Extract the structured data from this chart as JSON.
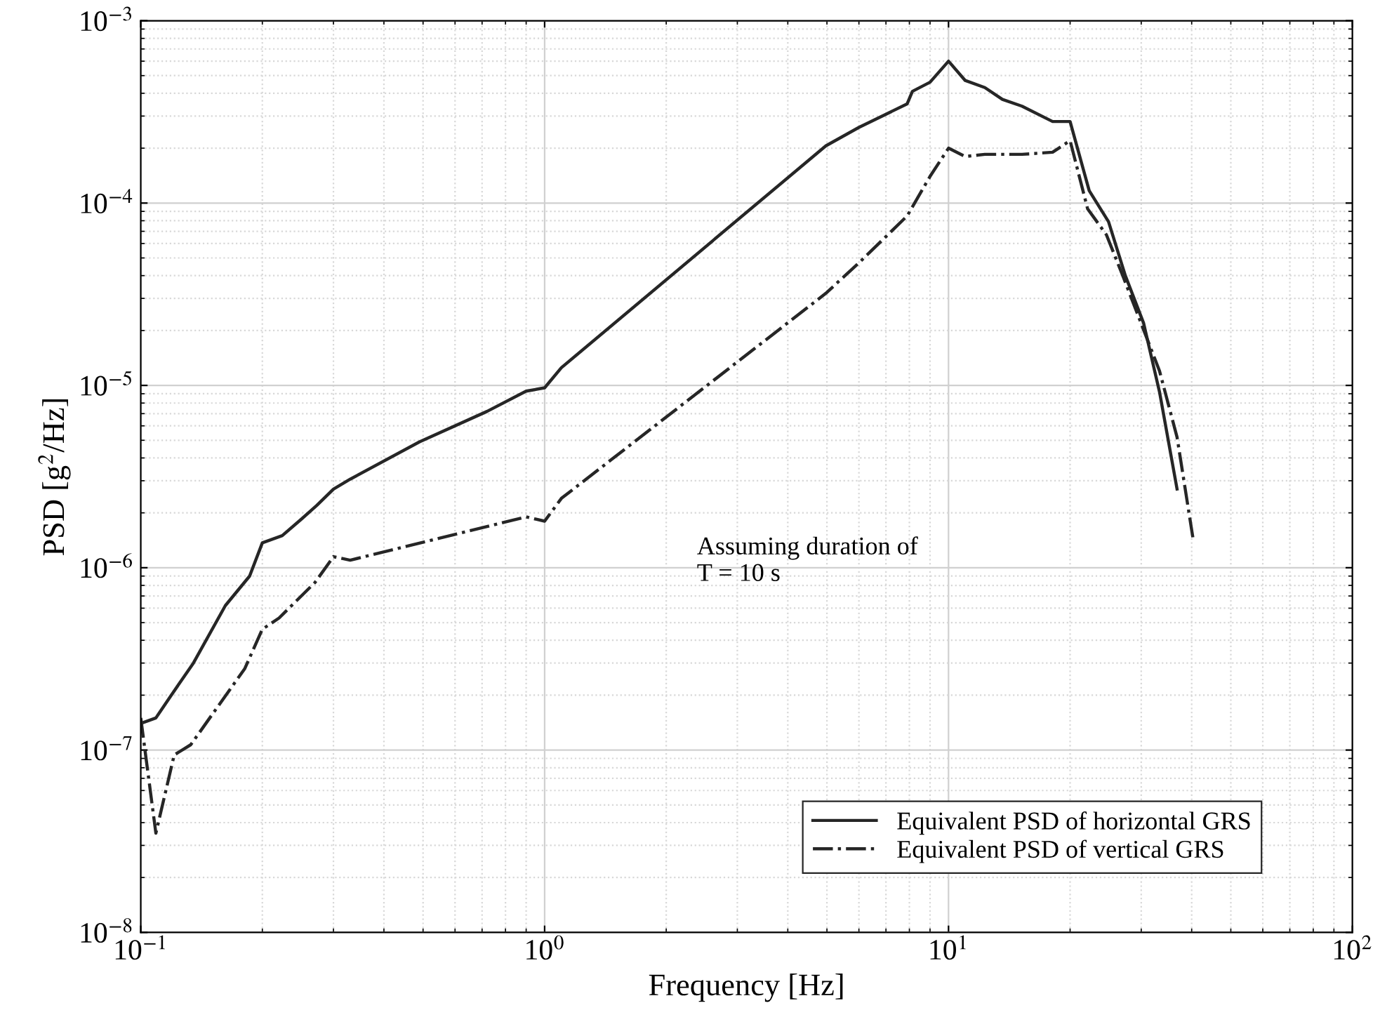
{
  "chart_data": {
    "type": "line",
    "xlabel": "Frequency [Hz]",
    "ylabel": "PSD [g$^{2}$/Hz]",
    "log": "xy",
    "grid": true,
    "legend": "bottom right",
    "marker": "none",
    "xlim": [
      0.1,
      100
    ],
    "ylim": [
      1e-08,
      0.001
    ],
    "xticks": [
      {
        "value": 0.1,
        "label": "10$^{−1}$"
      },
      {
        "value": 1,
        "label": "10$^{0}$"
      },
      {
        "value": 10,
        "label": "10$^{1}$"
      },
      {
        "value": 100,
        "label": "10$^{2}$"
      }
    ],
    "yticks": [
      {
        "value": 1e-08,
        "label": "10$^{−8}$"
      },
      {
        "value": 1e-07,
        "label": "10$^{−7}$"
      },
      {
        "value": 1e-06,
        "label": "10$^{−6}$"
      },
      {
        "value": 1e-05,
        "label": "10$^{−5}$"
      },
      {
        "value": 0.0001,
        "label": "10$^{−4}$"
      },
      {
        "value": 0.001,
        "label": "10$^{−3}$"
      }
    ],
    "annotations": [
      "Assuming duration of\nT = 10 s"
    ],
    "series": [
      {
        "name": "Equivalent PSD of horizontal GRS",
        "color": "#262626",
        "line_style": "solid",
        "x": [
          0.1,
          0.109,
          0.119,
          0.135,
          0.162,
          0.186,
          0.2,
          0.224,
          0.25,
          0.273,
          0.3,
          0.33,
          0.49,
          0.72,
          0.9,
          1.0,
          1.1,
          4.97,
          6.0,
          7.9,
          8.14,
          9.0,
          10,
          11.0,
          12.3,
          13.6,
          15.2,
          18.1,
          20.0,
          22.3,
          24.9,
          27.4,
          30.4,
          33.3,
          36.8
        ],
        "values": [
          1.4e-07,
          1.5e-07,
          2e-07,
          3e-07,
          6.2e-07,
          9e-07,
          1.37e-06,
          1.5e-06,
          1.85e-06,
          2.2e-06,
          2.7e-06,
          3.06e-06,
          4.9e-06,
          7.2e-06,
          9.3e-06,
          9.7e-06,
          1.25e-05,
          0.000206,
          0.00026,
          0.00035,
          0.00041,
          0.00046,
          0.0006,
          0.00047,
          0.00043,
          0.00037,
          0.00034,
          0.00028,
          0.00028,
          0.000117,
          7.9e-05,
          4e-05,
          2.2e-05,
          9.2e-06,
          2.7e-06
        ]
      },
      {
        "name": "Equivalent PSD of vertical GRS",
        "color": "#262626",
        "line_style": "dashdot",
        "x": [
          0.1,
          0.109,
          0.121,
          0.133,
          0.181,
          0.2,
          0.22,
          0.27,
          0.3,
          0.33,
          0.79,
          0.9,
          1.0,
          1.1,
          4.97,
          6.0,
          7.9,
          9.0,
          10,
          11.0,
          12.3,
          15.2,
          18.1,
          20.0,
          22.1,
          24.6,
          27.0,
          30.2,
          33.3,
          36.8,
          40.4
        ],
        "values": [
          1.5e-07,
          3.5e-08,
          9.4e-08,
          1.07e-07,
          2.8e-07,
          4.6e-07,
          5.3e-07,
          8.3e-07,
          1.15e-06,
          1.1e-06,
          1.77e-06,
          1.9e-06,
          1.8e-06,
          2.4e-06,
          3.2e-05,
          4.7e-05,
          8.5e-05,
          0.00014,
          0.0002,
          0.00018,
          0.000185,
          0.000185,
          0.00019,
          0.00022,
          9.3e-05,
          6.7e-05,
          4e-05,
          2.1e-05,
          1.2e-05,
          5.2e-06,
          1.4e-06
        ]
      }
    ]
  }
}
